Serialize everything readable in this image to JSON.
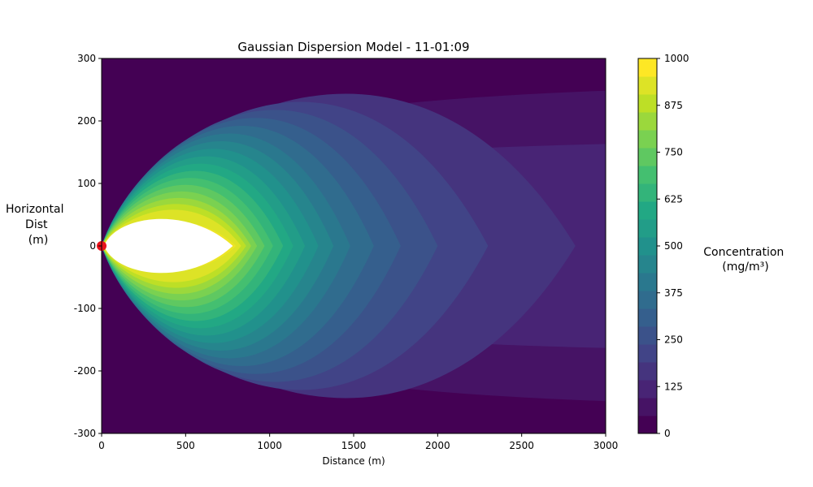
{
  "chart_data": {
    "type": "heatmap",
    "subtype": "filled-contour",
    "title": "Gaussian Dispersion Model - 11-01:09",
    "xlabel": "Distance (m)",
    "ylabel_lines": [
      "Horizontal",
      "Dist",
      "(m)"
    ],
    "xlim": [
      0,
      3000
    ],
    "ylim": [
      -300,
      300
    ],
    "xticks": [
      0,
      500,
      1000,
      1500,
      2000,
      2500,
      3000
    ],
    "yticks": [
      -300,
      -200,
      -100,
      0,
      100,
      200,
      300
    ],
    "source_marker": {
      "x": 0,
      "y": 0,
      "color": "#e8131b"
    },
    "colorbar": {
      "label_lines": [
        "Concentration",
        "(mg/m³)"
      ],
      "range": [
        0,
        1000
      ],
      "ticks": [
        0,
        125,
        250,
        375,
        500,
        625,
        750,
        875,
        1000
      ],
      "colormap": "viridis",
      "levels": 21
    },
    "contours": [
      {
        "level": 50,
        "x_end": 3000,
        "half_width_at_end": 247
      },
      {
        "level": 100,
        "x_end": 3000,
        "half_width_at_end": 162
      },
      {
        "level": 150,
        "x_end": 2820
      },
      {
        "level": 200,
        "x_end": 2300
      },
      {
        "level": 250,
        "x_end": 2000
      },
      {
        "level": 300,
        "x_end": 1780
      },
      {
        "level": 350,
        "x_end": 1620
      },
      {
        "level": 400,
        "x_end": 1480
      },
      {
        "level": 450,
        "x_end": 1380
      },
      {
        "level": 500,
        "x_end": 1290
      },
      {
        "level": 550,
        "x_end": 1210
      },
      {
        "level": 600,
        "x_end": 1140
      },
      {
        "level": 650,
        "x_end": 1080
      },
      {
        "level": 700,
        "x_end": 1020
      },
      {
        "level": 750,
        "x_end": 970
      },
      {
        "level": 800,
        "x_end": 925
      },
      {
        "level": 850,
        "x_end": 890
      },
      {
        "level": 900,
        "x_end": 860
      },
      {
        "level": 950,
        "x_end": 830
      },
      {
        "level": 1000,
        "x_end": 800,
        "max_half_width": 47,
        "x_at_max_width": 450
      }
    ],
    "above_max_color": "#ffffff",
    "background_color": "#440154"
  }
}
